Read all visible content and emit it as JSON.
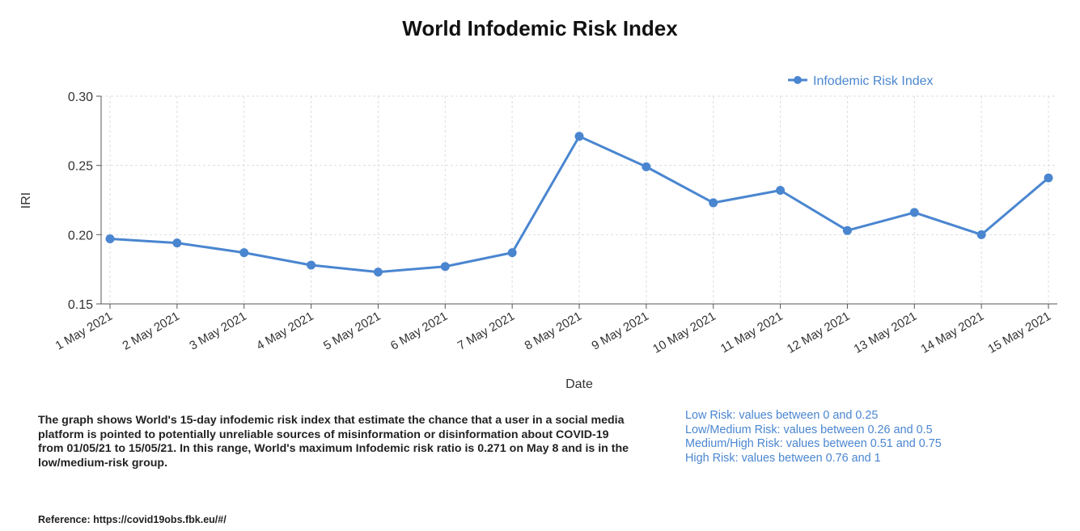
{
  "chart_data": {
    "type": "line",
    "title": "World Infodemic Risk Index",
    "xlabel": "Date",
    "ylabel": "IRI",
    "ylim": [
      0.15,
      0.3
    ],
    "yticks": [
      "0.15",
      "0.20",
      "0.25",
      "0.30"
    ],
    "grid": true,
    "legend_position": "top-right",
    "categories": [
      "1 May 2021",
      "2 May 2021",
      "3 May 2021",
      "4 May 2021",
      "5 May 2021",
      "6 May 2021",
      "7 May 2021",
      "8 May 2021",
      "9 May 2021",
      "10 May 2021",
      "11 May 2021",
      "12 May 2021",
      "13 May 2021",
      "14 May 2021",
      "15 May 2021"
    ],
    "series": [
      {
        "name": "Infodemic Risk Index",
        "color": "#4a86d0",
        "values": [
          0.197,
          0.194,
          0.187,
          0.178,
          0.173,
          0.177,
          0.187,
          0.271,
          0.249,
          0.223,
          0.232,
          0.203,
          0.216,
          0.2,
          0.241
        ]
      }
    ]
  },
  "description": "The graph shows World's 15-day infodemic risk index that estimate the chance that a user in a social media platform is pointed to potentially unreliable sources of misinformation or disinformation about COVID-19 from 01/05/21 to 15/05/21. In this range, World's maximum Infodemic risk ratio is 0.271 on May 8 and is in the low/medium-risk group.",
  "risk_levels": [
    "Low Risk: values between 0 and 0.25",
    "Low/Medium Risk: values between 0.26 and 0.5",
    "Medium/High Risk: values between 0.51 and 0.75",
    "High Risk: values between 0.76 and 1"
  ],
  "reference": "Reference: https://covid19obs.fbk.eu/#/"
}
